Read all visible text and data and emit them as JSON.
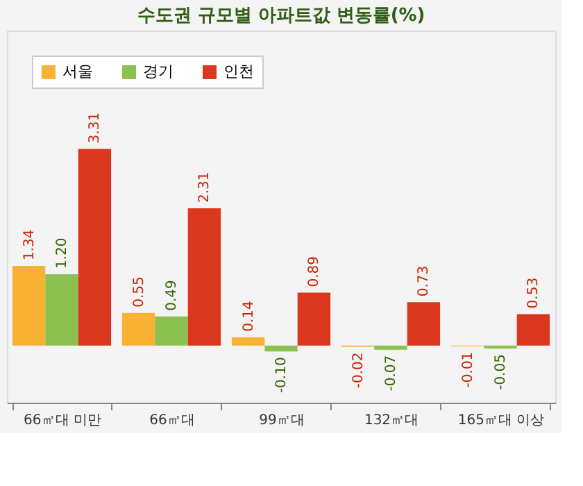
{
  "chart_data": {
    "type": "bar",
    "title": "수도권 규모별 아파트값 변동률(%)",
    "categories": [
      "66㎡대 미만",
      "66㎡대",
      "99㎡대",
      "132㎡대",
      "165㎡대 이상"
    ],
    "series": [
      {
        "name": "서울",
        "color": "#f9b233",
        "values": [
          1.34,
          0.55,
          0.14,
          -0.02,
          -0.01
        ],
        "value_labels": [
          "1.34",
          "0.55",
          "0.14",
          "-0.02",
          "-0.01"
        ]
      },
      {
        "name": "경기",
        "color": "#8cc152",
        "values": [
          1.2,
          0.49,
          -0.1,
          -0.07,
          -0.05
        ],
        "value_labels": [
          "1.20",
          "0.49",
          "-0.10",
          "-0.07",
          "-0.05"
        ]
      },
      {
        "name": "인천",
        "color": "#d9381e",
        "values": [
          3.31,
          2.31,
          0.89,
          0.73,
          0.53
        ],
        "value_labels": [
          "3.31",
          "2.31",
          "0.89",
          "0.73",
          "0.53"
        ]
      }
    ],
    "ylim": [
      -0.96,
      5.3
    ],
    "tick_labels": "x",
    "legend": "top left",
    "grid": false
  }
}
